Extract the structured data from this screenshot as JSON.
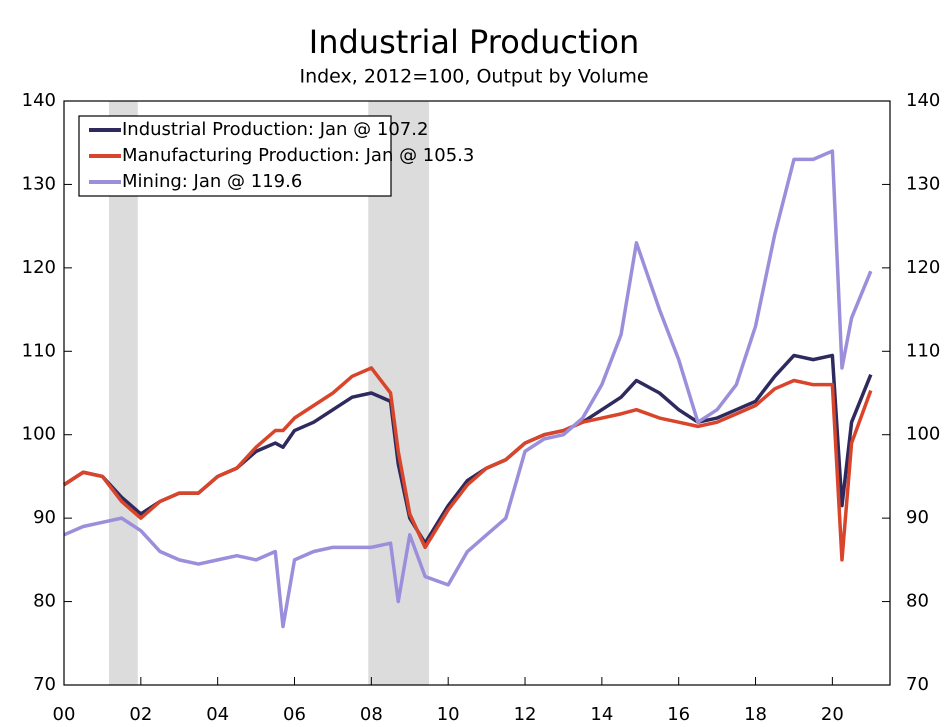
{
  "chart_data": {
    "type": "line",
    "title": "Industrial Production",
    "subtitle": "Index, 2012=100, Output by Volume",
    "x": [
      2000,
      2000.5,
      2001,
      2001.5,
      2002,
      2002.5,
      2003,
      2003.5,
      2004,
      2004.5,
      2005,
      2005.5,
      2005.7,
      2006,
      2006.5,
      2007,
      2007.5,
      2008,
      2008.5,
      2008.7,
      2009,
      2009.4,
      2010,
      2010.5,
      2011,
      2011.5,
      2012,
      2012.5,
      2013,
      2013.5,
      2014,
      2014.5,
      2014.9,
      2015.5,
      2016,
      2016.5,
      2017,
      2017.5,
      2018,
      2018.5,
      2019,
      2019.5,
      2020,
      2020.25,
      2020.5,
      2021
    ],
    "series": [
      {
        "name": "Industrial Production: Jan @ 107.2",
        "color": "#2e2a5e",
        "values": [
          94,
          95.5,
          95,
          92.5,
          90.5,
          92,
          93,
          93,
          95,
          96,
          98,
          99,
          98.5,
          100.5,
          101.5,
          103,
          104.5,
          105,
          104,
          96.5,
          90,
          87,
          91.5,
          94.5,
          96,
          97,
          99,
          100,
          100.5,
          101.5,
          103,
          104.5,
          106.5,
          105,
          103,
          101.5,
          102,
          103,
          104,
          107,
          109.5,
          109,
          109.5,
          91.5,
          101.5,
          107.2
        ]
      },
      {
        "name": "Manufacturing Production: Jan @ 105.3",
        "color": "#d9452b",
        "values": [
          94,
          95.5,
          95,
          92,
          90,
          92,
          93,
          93,
          95,
          96,
          98.5,
          100.5,
          100.5,
          102,
          103.5,
          105,
          107,
          108,
          105,
          98,
          90.5,
          86.5,
          91,
          94,
          96,
          97,
          99,
          100,
          100.5,
          101.5,
          102,
          102.5,
          103,
          102,
          101.5,
          101,
          101.5,
          102.5,
          103.5,
          105.5,
          106.5,
          106,
          106,
          85,
          99,
          105.3
        ]
      },
      {
        "name": "Mining: Jan @ 119.6",
        "color": "#9b8fdc",
        "values": [
          88,
          89,
          89.5,
          90,
          88.5,
          86,
          85,
          84.5,
          85,
          85.5,
          85,
          86,
          77,
          85,
          86,
          86.5,
          86.5,
          86.5,
          87,
          80,
          88,
          83,
          82,
          86,
          88,
          90,
          98,
          99.5,
          100,
          102,
          106,
          112,
          123,
          115,
          109,
          101.5,
          103,
          106,
          113,
          124,
          133,
          133,
          134,
          108,
          114,
          119.6
        ]
      }
    ],
    "xlim": [
      2000,
      2021.5
    ],
    "xticks": [
      {
        "value": 2000,
        "label": "00"
      },
      {
        "value": 2002,
        "label": "02"
      },
      {
        "value": 2004,
        "label": "04"
      },
      {
        "value": 2006,
        "label": "06"
      },
      {
        "value": 2008,
        "label": "08"
      },
      {
        "value": 2010,
        "label": "10"
      },
      {
        "value": 2012,
        "label": "12"
      },
      {
        "value": 2014,
        "label": "14"
      },
      {
        "value": 2016,
        "label": "16"
      },
      {
        "value": 2018,
        "label": "18"
      },
      {
        "value": 2020,
        "label": "20"
      }
    ],
    "ylim": [
      70,
      140
    ],
    "yticks": [
      70,
      80,
      90,
      100,
      110,
      120,
      130,
      140
    ],
    "recessions": [
      [
        2001.17,
        2001.92
      ],
      [
        2007.92,
        2009.5
      ]
    ],
    "legend": "top-left"
  }
}
